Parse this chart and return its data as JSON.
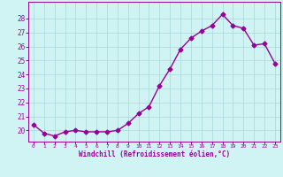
{
  "hours": [
    0,
    1,
    2,
    3,
    4,
    5,
    6,
    7,
    8,
    9,
    10,
    11,
    12,
    13,
    14,
    15,
    16,
    17,
    18,
    19,
    20,
    21,
    22,
    23
  ],
  "values": [
    20.4,
    19.8,
    19.6,
    19.9,
    20.0,
    19.9,
    19.9,
    19.9,
    20.0,
    20.5,
    21.2,
    21.7,
    23.2,
    24.4,
    25.8,
    26.6,
    27.1,
    27.5,
    28.3,
    27.5,
    27.3,
    26.1,
    26.2,
    24.8
  ],
  "line_color": "#990099",
  "marker": "D",
  "markersize": 2.5,
  "linewidth": 1.0,
  "bg_color": "#d0f4f4",
  "grid_color": "#a8d8d8",
  "xlabel": "Windchill (Refroidissement éolien,°C)",
  "xlim": [
    -0.5,
    23.5
  ],
  "ylim": [
    19.2,
    29.2
  ],
  "yticks": [
    20,
    21,
    22,
    23,
    24,
    25,
    26,
    27,
    28
  ],
  "xticks": [
    0,
    1,
    2,
    3,
    4,
    5,
    6,
    7,
    8,
    9,
    10,
    11,
    12,
    13,
    14,
    15,
    16,
    17,
    18,
    19,
    20,
    21,
    22,
    23
  ],
  "tick_color": "#990099",
  "label_color": "#990099",
  "axis_color": "#990099"
}
